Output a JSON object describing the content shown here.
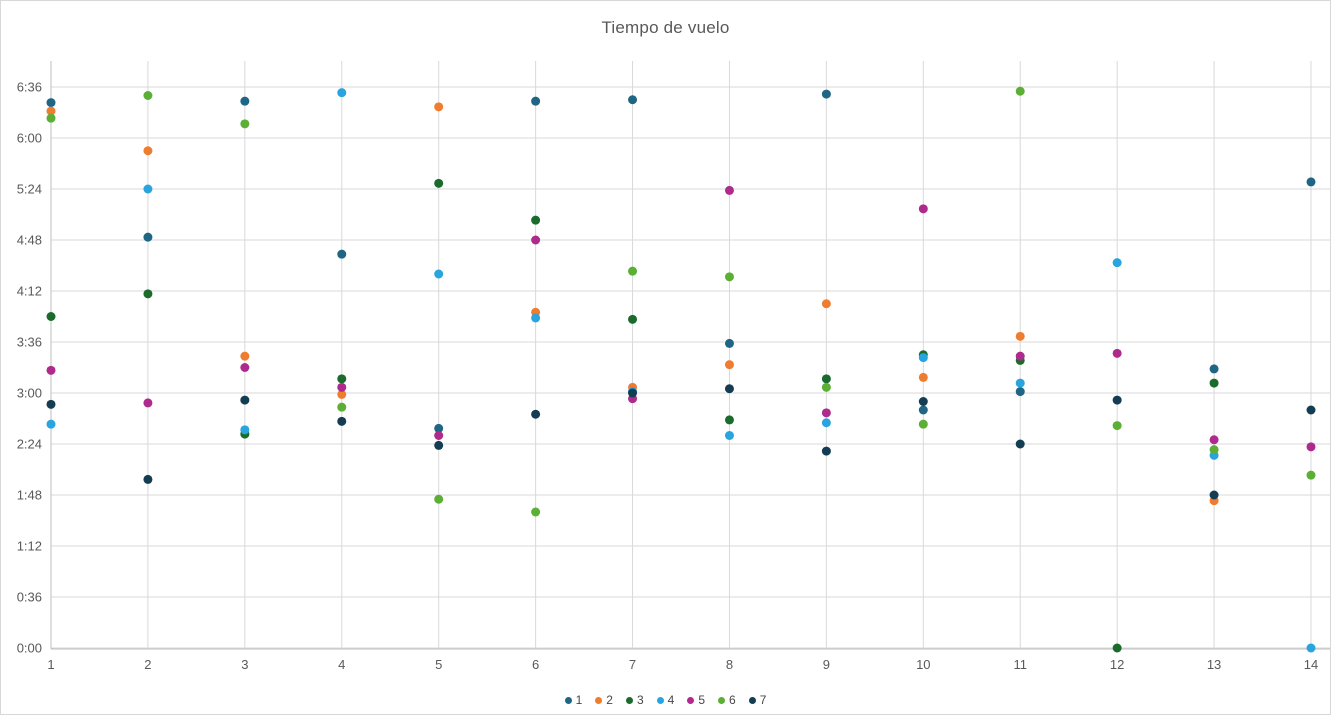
{
  "chart": {
    "title": "Tiempo de vuelo"
  },
  "chart_data": {
    "type": "scatter",
    "title": "Tiempo de vuelo",
    "x_categories": [
      1,
      2,
      3,
      4,
      5,
      6,
      7,
      8,
      9,
      10,
      11,
      12,
      13,
      14
    ],
    "y_ticks": [
      "0:00",
      "0:36",
      "1:12",
      "1:48",
      "2:24",
      "3:00",
      "3:36",
      "4:12",
      "4:48",
      "5:24",
      "6:00",
      "6:36"
    ],
    "y_axis_format": "h:mm",
    "ylim_minutes": [
      0,
      396
    ],
    "y_tick_step_minutes": 36,
    "grid": true,
    "legend_position": "bottom",
    "axis_color": "#bfbfbf",
    "gridline_color": "#d9d9d9",
    "tick_label_color": "#595959",
    "series": [
      {
        "name": "1",
        "color": "#1f6584",
        "values": [
          "6:25",
          "4:50",
          "6:26",
          "4:38",
          "2:35",
          "6:26",
          "6:27",
          "3:35",
          "6:31",
          "2:48",
          "3:01",
          null,
          "3:17",
          "5:29"
        ]
      },
      {
        "name": "2",
        "color": "#ef7d2f",
        "values": [
          "6:19",
          "5:51",
          "3:26",
          "2:59",
          "6:22",
          "3:57",
          "3:04",
          "3:20",
          "4:03",
          "3:11",
          "3:40",
          null,
          "1:44",
          null
        ]
      },
      {
        "name": "3",
        "color": "#1a6b2c",
        "values": [
          "3:54",
          "4:10",
          "2:31",
          "3:10",
          "5:28",
          "5:02",
          "3:52",
          "2:41",
          "3:10",
          "3:27",
          "3:23",
          "0:00",
          "3:07",
          null
        ]
      },
      {
        "name": "4",
        "color": "#29a4de",
        "values": [
          "2:38",
          "5:24",
          "2:34",
          "6:32",
          "4:24",
          "3:53",
          "3:01",
          "2:30",
          "2:39",
          "3:25",
          "3:07",
          "4:32",
          "2:16",
          "0:00"
        ]
      },
      {
        "name": "5",
        "color": "#ae2a8c",
        "values": [
          "3:16",
          "2:53",
          "3:18",
          "3:04",
          "2:30",
          "4:48",
          "2:56",
          "5:23",
          "2:46",
          "5:10",
          "3:26",
          "3:28",
          "2:27",
          "2:22"
        ]
      },
      {
        "name": "6",
        "color": "#5aaf34",
        "values": [
          "6:14",
          "6:30",
          "6:10",
          "2:50",
          "1:45",
          "1:36",
          "4:26",
          "4:22",
          "3:04",
          "2:38",
          "6:33",
          "2:37",
          "2:20",
          "2:02"
        ]
      },
      {
        "name": "7",
        "color": "#143c52",
        "values": [
          "2:52",
          "1:59",
          "2:55",
          "2:40",
          "2:23",
          "2:45",
          "3:00",
          "3:03",
          "2:19",
          "2:54",
          "2:24",
          "2:55",
          "1:48",
          "2:48"
        ]
      }
    ]
  }
}
